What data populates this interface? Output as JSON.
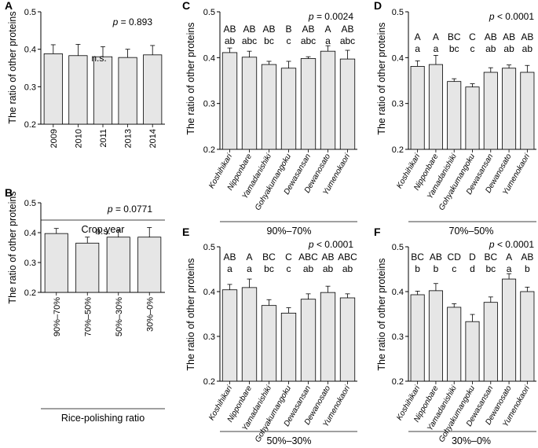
{
  "chart_data": [
    {
      "panel": "A",
      "type": "bar",
      "ylabel": "The ratio of other proteins",
      "xlabel": "Crop year",
      "ylim": [
        0.2,
        0.5
      ],
      "yticks": [
        "0.2",
        "0.3",
        "0.4",
        "0.5"
      ],
      "categories": [
        "2009",
        "2010",
        "2011",
        "2013",
        "2014"
      ],
      "values": [
        0.388,
        0.383,
        0.38,
        0.378,
        0.385
      ],
      "errors": [
        0.024,
        0.03,
        0.027,
        0.022,
        0.025
      ],
      "pvalue": "0.893",
      "significance": "n.s."
    },
    {
      "panel": "B",
      "type": "bar",
      "ylabel": "The ratio of other proteins",
      "xlabel": "Rice-polishing ratio",
      "ylim": [
        0.2,
        0.5
      ],
      "yticks": [
        "0.2",
        "0.3",
        "0.4",
        "0.5"
      ],
      "categories": [
        "90%–70%",
        "70%–50%",
        "50%–30%",
        "30%–0%"
      ],
      "values": [
        0.397,
        0.365,
        0.385,
        0.385
      ],
      "errors": [
        0.017,
        0.02,
        0.023,
        0.032
      ],
      "pvalue": "0.0771",
      "significance": "n.s."
    },
    {
      "panel": "C",
      "type": "bar",
      "ylabel": "The ratio of other proteins",
      "xlabel": "90%–70%",
      "ylim": [
        0.2,
        0.5
      ],
      "yticks": [
        "0.2",
        "0.3",
        "0.4",
        "0.5"
      ],
      "categories": [
        "Koshihikari",
        "Nipponbare",
        "Yamadanishiki",
        "Gohyakumangoku",
        "Dewasansan",
        "Dewanosato",
        "Yumenokaori"
      ],
      "values": [
        0.411,
        0.401,
        0.385,
        0.377,
        0.398,
        0.414,
        0.397
      ],
      "errors": [
        0.01,
        0.013,
        0.007,
        0.015,
        0.004,
        0.012,
        0.019
      ],
      "letters_upper": [
        "AB",
        "AB",
        "AB",
        "B",
        "AB",
        "A",
        "AB"
      ],
      "letters_lower": [
        "ab",
        "abc",
        "bc",
        "c",
        "abc",
        "a",
        "abc"
      ],
      "pvalue": "0.0024"
    },
    {
      "panel": "D",
      "type": "bar",
      "ylabel": "The ratio of other proteins",
      "xlabel": "70%–50%",
      "ylim": [
        0.2,
        0.5
      ],
      "yticks": [
        "0.2",
        "0.3",
        "0.4",
        "0.5"
      ],
      "categories": [
        "Koshihikari",
        "Nipponbare",
        "Yamadanishiki",
        "Gohyakumangoku",
        "Dewasansan",
        "Dewanosato",
        "Yumenokaori"
      ],
      "values": [
        0.381,
        0.385,
        0.348,
        0.336,
        0.368,
        0.377,
        0.368
      ],
      "errors": [
        0.012,
        0.02,
        0.006,
        0.007,
        0.01,
        0.007,
        0.015
      ],
      "letters_upper": [
        "A",
        "A",
        "BC",
        "C",
        "AB",
        "AB",
        "AB"
      ],
      "letters_lower": [
        "a",
        "a",
        "bc",
        "c",
        "ab",
        "ab",
        "ab"
      ],
      "pvalue": "< 0.0001"
    },
    {
      "panel": "E",
      "type": "bar",
      "ylabel": "The ratio of other proteins",
      "xlabel": "50%–30%",
      "ylim": [
        0.2,
        0.5
      ],
      "yticks": [
        "0.2",
        "0.3",
        "0.4",
        "0.5"
      ],
      "categories": [
        "Koshihikari",
        "Nipponbare",
        "Yamadanishiki",
        "Gohyakumangoku",
        "Dewasansan",
        "Dewanosato",
        "Yumenokaori"
      ],
      "values": [
        0.404,
        0.409,
        0.369,
        0.352,
        0.383,
        0.398,
        0.386
      ],
      "errors": [
        0.012,
        0.019,
        0.013,
        0.012,
        0.012,
        0.014,
        0.009
      ],
      "letters_upper": [
        "AB",
        "A",
        "BC",
        "C",
        "ABC",
        "AB",
        "ABC"
      ],
      "letters_lower": [
        "a",
        "a",
        "bc",
        "c",
        "ab",
        "ab",
        "ab"
      ],
      "pvalue": "< 0.0001"
    },
    {
      "panel": "F",
      "type": "bar",
      "ylabel": "The ratio of other proteins",
      "xlabel": "30%–0%",
      "ylim": [
        0.2,
        0.5
      ],
      "yticks": [
        "0.2",
        "0.3",
        "0.4",
        "0.5"
      ],
      "categories": [
        "Koshihikari",
        "Nipponbare",
        "Yamadanishiki",
        "Gohyakumangoku",
        "Dewasansan",
        "Dewanosato",
        "Yumenokaori"
      ],
      "values": [
        0.393,
        0.402,
        0.365,
        0.333,
        0.376,
        0.428,
        0.4
      ],
      "errors": [
        0.008,
        0.016,
        0.008,
        0.016,
        0.012,
        0.012,
        0.01
      ],
      "letters_upper": [
        "BC",
        "AB",
        "CD",
        "D",
        "BC",
        "A",
        "AB"
      ],
      "letters_lower": [
        "b",
        "b",
        "c",
        "d",
        "bc",
        "a",
        "b"
      ],
      "pvalue": "< 0.0001"
    }
  ]
}
